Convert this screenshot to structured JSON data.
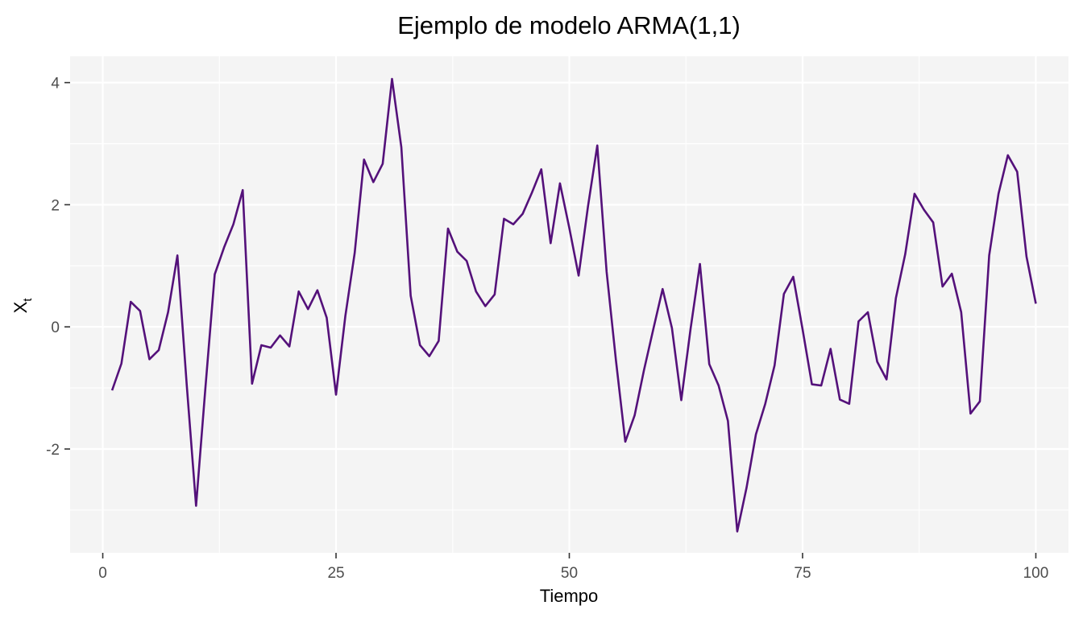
{
  "chart_data": {
    "type": "line",
    "title": "Ejemplo de modelo ARMA(1,1)",
    "xlabel": "Tiempo",
    "ylabel": "X",
    "ylabel_subscript": "t",
    "xlim": [
      -3.5,
      103.5
    ],
    "ylim": [
      -3.7,
      4.43
    ],
    "x_ticks": [
      0,
      25,
      50,
      75,
      100
    ],
    "x_tick_labels": [
      "0",
      "25",
      "50",
      "75",
      "100"
    ],
    "y_ticks": [
      -2,
      0,
      2,
      4
    ],
    "y_tick_labels": [
      "-2",
      "0",
      "2",
      "4"
    ],
    "x_minor_ticks": [
      12.5,
      37.5,
      62.5,
      87.5
    ],
    "y_minor_ticks": [
      -3,
      -1,
      1,
      3
    ],
    "grid": true,
    "panel_background": "#f4f4f4",
    "grid_color": "#ffffff",
    "series": [
      {
        "color": "#54117a",
        "x": [
          1,
          2,
          3,
          4,
          5,
          6,
          7,
          8,
          9,
          10,
          11,
          12,
          13,
          14,
          15,
          16,
          17,
          18,
          19,
          20,
          21,
          22,
          23,
          24,
          25,
          26,
          27,
          28,
          29,
          30,
          31,
          32,
          33,
          34,
          35,
          36,
          37,
          38,
          39,
          40,
          41,
          42,
          43,
          44,
          45,
          46,
          47,
          48,
          49,
          50,
          51,
          52,
          53,
          54,
          55,
          56,
          57,
          58,
          59,
          60,
          61,
          62,
          63,
          64,
          65,
          66,
          67,
          68,
          69,
          70,
          71,
          72,
          73,
          74,
          75,
          76,
          77,
          78,
          79,
          80,
          81,
          82,
          83,
          84,
          85,
          86,
          87,
          88,
          89,
          90,
          91,
          92,
          93,
          94,
          95,
          96,
          97,
          98,
          99,
          100
        ],
        "y": [
          -1.04,
          -0.6,
          0.41,
          0.26,
          -0.53,
          -0.38,
          0.24,
          1.17,
          -0.95,
          -2.93,
          -1.0,
          0.86,
          1.3,
          1.68,
          2.24,
          -0.93,
          -0.3,
          -0.34,
          -0.14,
          -0.32,
          0.58,
          0.29,
          0.6,
          0.15,
          -1.11,
          0.18,
          1.21,
          2.74,
          2.37,
          2.67,
          4.06,
          2.94,
          0.51,
          -0.3,
          -0.48,
          -0.23,
          1.61,
          1.23,
          1.08,
          0.58,
          0.34,
          0.53,
          1.77,
          1.68,
          1.85,
          2.2,
          2.58,
          1.37,
          2.35,
          1.62,
          0.84,
          1.97,
          2.97,
          0.9,
          -0.55,
          -1.88,
          -1.45,
          -0.71,
          -0.04,
          0.62,
          -0.02,
          -1.2,
          -0.03,
          1.03,
          -0.61,
          -0.96,
          -1.54,
          -3.35,
          -2.63,
          -1.76,
          -1.26,
          -0.63,
          0.54,
          0.82,
          -0.04,
          -0.94,
          -0.96,
          -0.36,
          -1.19,
          -1.26,
          0.09,
          0.24,
          -0.57,
          -0.86,
          0.47,
          1.19,
          2.18,
          1.92,
          1.71,
          0.66,
          0.87,
          0.24,
          -1.42,
          -1.22,
          1.17,
          2.18,
          2.81,
          2.54,
          1.15,
          0.38
        ]
      }
    ]
  }
}
